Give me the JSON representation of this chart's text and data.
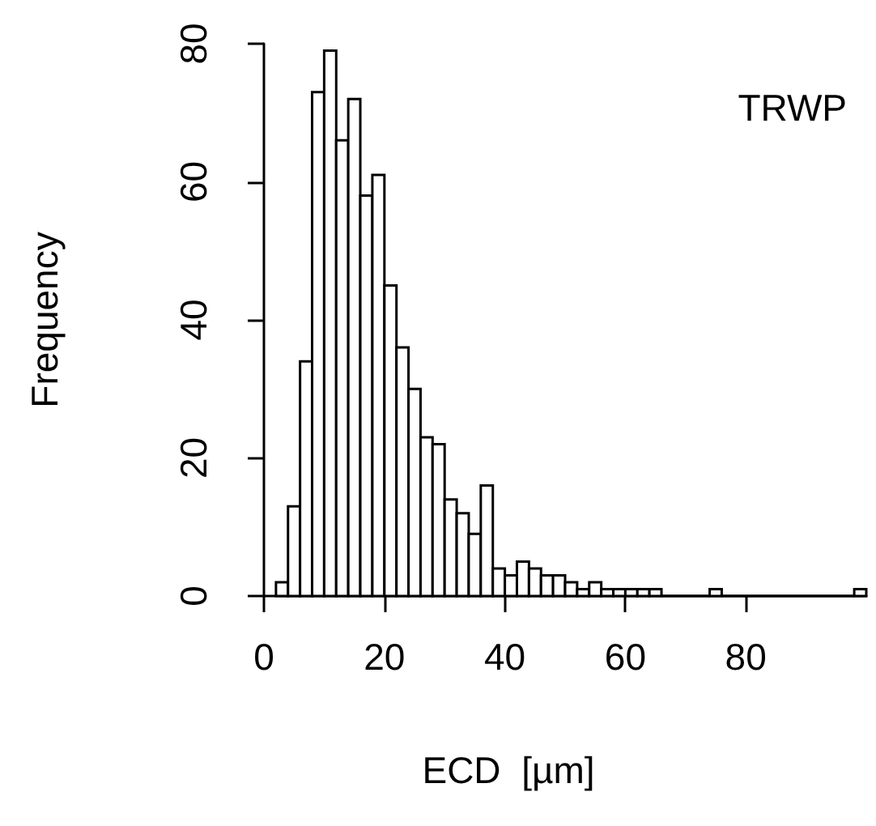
{
  "chart_data": {
    "type": "histogram",
    "xlabel": "ECD  [µm]",
    "ylabel": "Frequency",
    "annotations": [
      "TRWP"
    ],
    "bins": [
      2,
      4,
      6,
      8,
      10,
      12,
      14,
      16,
      18,
      20,
      22,
      24,
      26,
      28,
      30,
      32,
      34,
      36,
      38,
      40,
      42,
      44,
      46,
      48,
      50,
      52,
      54,
      56,
      58,
      60,
      62,
      64,
      66,
      68,
      70,
      72,
      74,
      76,
      78,
      80,
      82,
      84,
      86,
      88,
      90,
      92,
      94,
      96,
      98,
      100
    ],
    "values": [
      2,
      13,
      34,
      73,
      79,
      66,
      72,
      58,
      61,
      45,
      36,
      30,
      23,
      22,
      14,
      12,
      9,
      16,
      4,
      3,
      5,
      4,
      3,
      3,
      2,
      1,
      2,
      1,
      1,
      1,
      1,
      1,
      0,
      0,
      0,
      0,
      1,
      0,
      0,
      0,
      0,
      0,
      0,
      0,
      0,
      0,
      0,
      0,
      1
    ],
    "color": "#ffffff",
    "xlim": [
      0,
      100
    ],
    "xticks": [
      0,
      20,
      40,
      60,
      80
    ],
    "ylim": [
      0,
      80
    ],
    "yticks": [
      0,
      20,
      40,
      60,
      80
    ],
    "grid": false
  }
}
